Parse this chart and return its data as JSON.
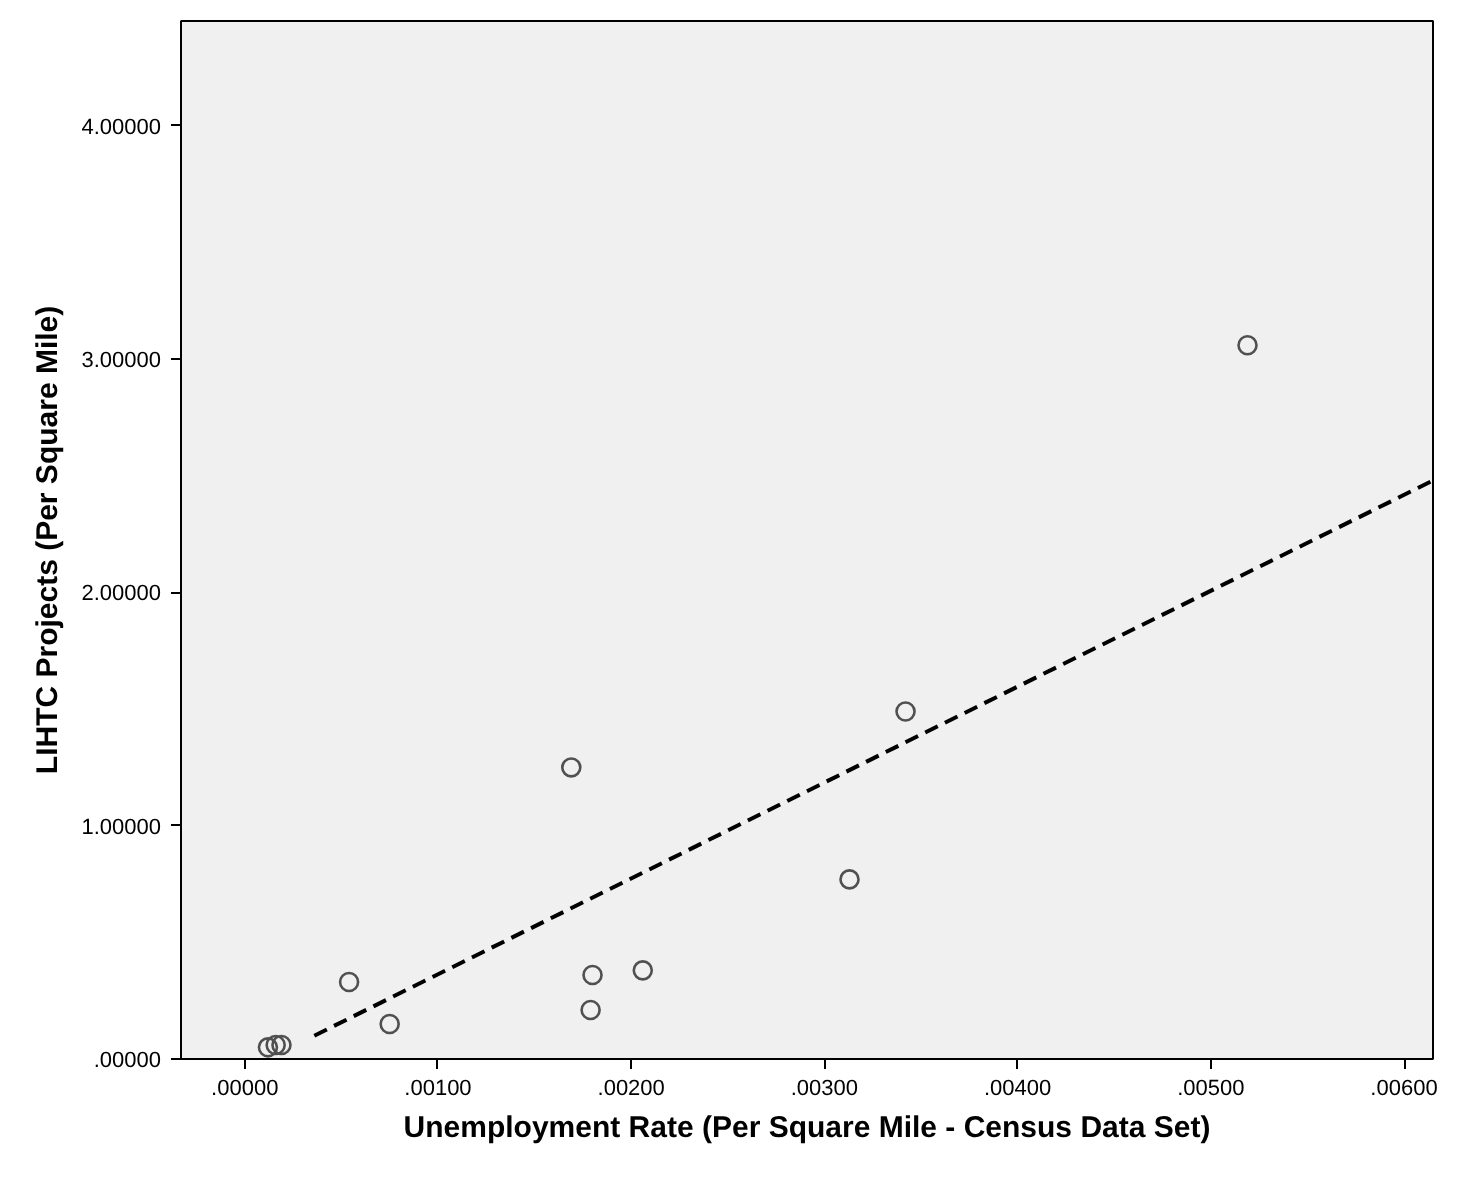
{
  "chart_data": {
    "type": "scatter",
    "xlabel": "Unemployment Rate (Per Square Mile - Census Data Set)",
    "ylabel": "LIHTC Projects (Per Square Mile)",
    "xlim": [
      -0.00033,
      0.00615
    ],
    "ylim": [
      0,
      4.45
    ],
    "xticks": [
      {
        "value": 0,
        "label": ".00000"
      },
      {
        "value": 0.001,
        "label": ".00100"
      },
      {
        "value": 0.002,
        "label": ".00200"
      },
      {
        "value": 0.003,
        "label": ".00300"
      },
      {
        "value": 0.004,
        "label": ".00400"
      },
      {
        "value": 0.005,
        "label": ".00500"
      },
      {
        "value": 0.006,
        "label": ".00600"
      }
    ],
    "yticks": [
      {
        "value": 0,
        "label": ".00000"
      },
      {
        "value": 1,
        "label": "1.00000"
      },
      {
        "value": 2,
        "label": "2.00000"
      },
      {
        "value": 3,
        "label": "3.00000"
      },
      {
        "value": 4,
        "label": "4.00000"
      }
    ],
    "grid": false,
    "marker": "circle",
    "series": [
      {
        "color": "#505050",
        "x": [
          0.00519,
          0.00342,
          0.00169,
          0.00313,
          0.00054,
          0.00075,
          0.0018,
          0.00179,
          0.00206,
          0.00012,
          0.00016,
          0.00019
        ],
        "values": [
          3.06,
          1.49,
          1.25,
          0.77,
          0.33,
          0.15,
          0.36,
          0.21,
          0.38,
          0.05,
          0.06,
          0.06
        ]
      },
      {
        "type": "line",
        "color": "#000000",
        "line_style": "dashed",
        "marker": "none",
        "x": [
          0.00036,
          0.00615
        ],
        "values": [
          0.1,
          2.48
        ]
      }
    ]
  }
}
